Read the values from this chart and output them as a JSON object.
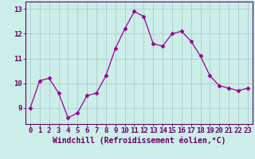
{
  "x": [
    0,
    1,
    2,
    3,
    4,
    5,
    6,
    7,
    8,
    9,
    10,
    11,
    12,
    13,
    14,
    15,
    16,
    17,
    18,
    19,
    20,
    21,
    22,
    23
  ],
  "y": [
    9.0,
    10.1,
    10.2,
    9.6,
    8.6,
    8.8,
    9.5,
    9.6,
    10.3,
    11.4,
    12.2,
    12.9,
    12.7,
    11.6,
    11.5,
    12.0,
    12.1,
    11.7,
    11.1,
    10.3,
    9.9,
    9.8,
    9.7,
    9.8
  ],
  "line_color": "#990099",
  "marker": "D",
  "marker_size": 2.5,
  "bg_color": "#cceee8",
  "grid_color": "#aacccc",
  "xlabel": "Windchill (Refroidissement éolien,°C)",
  "ylabel_ticks": [
    9,
    10,
    11,
    12,
    13
  ],
  "xlim": [
    -0.5,
    23.5
  ],
  "ylim": [
    8.35,
    13.3
  ],
  "tick_color": "#660066",
  "label_fontsize": 7,
  "tick_fontsize": 6.5
}
